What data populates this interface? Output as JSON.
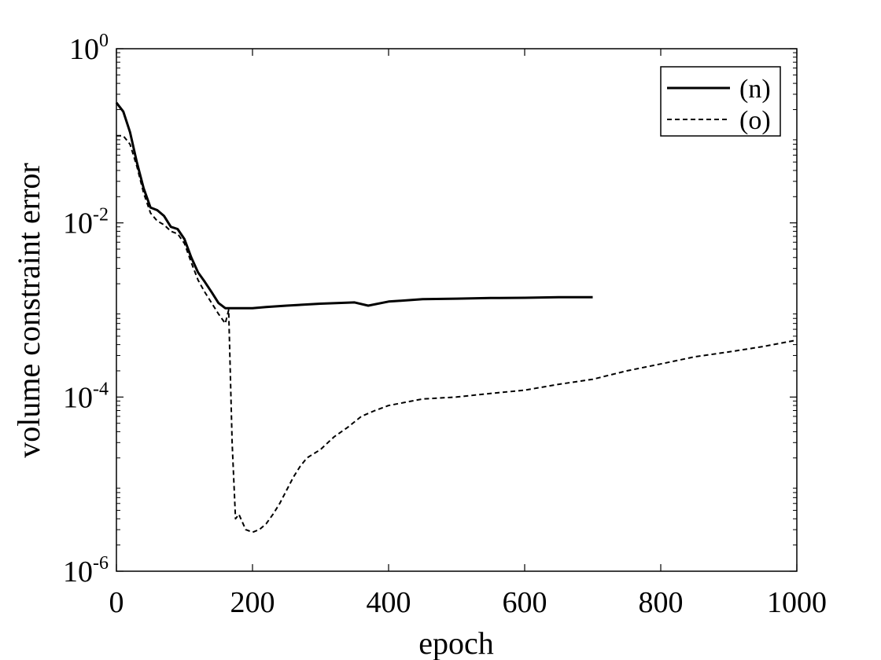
{
  "chart_data": {
    "type": "line",
    "title": "",
    "xlabel": "epoch",
    "ylabel": "volume constraint error",
    "xlim": [
      0,
      1000
    ],
    "ylim": [
      1e-06,
      1
    ],
    "yscale": "log",
    "grid": false,
    "legend_position": "top-right",
    "x_ticks": [
      {
        "value": 0,
        "label": "0"
      },
      {
        "value": 200,
        "label": "200"
      },
      {
        "value": 400,
        "label": "400"
      },
      {
        "value": 600,
        "label": "600"
      },
      {
        "value": 800,
        "label": "800"
      },
      {
        "value": 1000,
        "label": "1000"
      }
    ],
    "y_ticks": [
      {
        "value": 1e-06,
        "base": "10",
        "exponent": "-6"
      },
      {
        "value": 0.0001,
        "base": "10",
        "exponent": "-4"
      },
      {
        "value": 0.01,
        "base": "10",
        "exponent": "-2"
      },
      {
        "value": 1,
        "base": "10",
        "exponent": "0"
      }
    ],
    "series": [
      {
        "name": "(n)",
        "style": "solid",
        "color": "#000000",
        "x": [
          0,
          10,
          20,
          30,
          40,
          50,
          60,
          70,
          80,
          90,
          100,
          110,
          120,
          130,
          140,
          150,
          160,
          170,
          180,
          190,
          200,
          220,
          250,
          300,
          350,
          370,
          400,
          450,
          500,
          550,
          600,
          650,
          700
        ],
        "y": [
          0.24,
          0.19,
          0.11,
          0.05,
          0.025,
          0.015,
          0.014,
          0.012,
          0.009,
          0.0085,
          0.0065,
          0.004,
          0.0027,
          0.0021,
          0.0016,
          0.0012,
          0.00105,
          0.00105,
          0.00105,
          0.00105,
          0.00105,
          0.00108,
          0.00112,
          0.00118,
          0.00122,
          0.00112,
          0.00125,
          0.00133,
          0.00135,
          0.00137,
          0.00138,
          0.0014,
          0.0014
        ]
      },
      {
        "name": "(o)",
        "style": "dashed",
        "color": "#000000",
        "x": [
          0,
          10,
          20,
          30,
          40,
          50,
          60,
          70,
          80,
          90,
          100,
          110,
          120,
          130,
          140,
          150,
          160,
          165,
          170,
          175,
          180,
          190,
          200,
          210,
          220,
          230,
          240,
          250,
          260,
          270,
          280,
          300,
          320,
          340,
          360,
          380,
          400,
          450,
          500,
          550,
          600,
          650,
          700,
          750,
          800,
          850,
          900,
          950,
          1000
        ],
        "y": [
          0.1,
          0.1,
          0.08,
          0.045,
          0.022,
          0.013,
          0.0105,
          0.0095,
          0.008,
          0.0075,
          0.0058,
          0.0035,
          0.0022,
          0.0016,
          0.0012,
          0.0009,
          0.0007,
          0.001,
          3e-05,
          4e-06,
          4.5e-06,
          3e-06,
          2.8e-06,
          3e-06,
          3.5e-06,
          4.5e-06,
          6e-06,
          8.5e-06,
          1.2e-05,
          1.6e-05,
          2e-05,
          2.5e-05,
          3.5e-05,
          4.5e-05,
          6e-05,
          7e-05,
          8e-05,
          9.5e-05,
          0.0001,
          0.00011,
          0.00012,
          0.00014,
          0.00016,
          0.0002,
          0.00024,
          0.00029,
          0.00033,
          0.00038,
          0.00045
        ]
      }
    ]
  }
}
